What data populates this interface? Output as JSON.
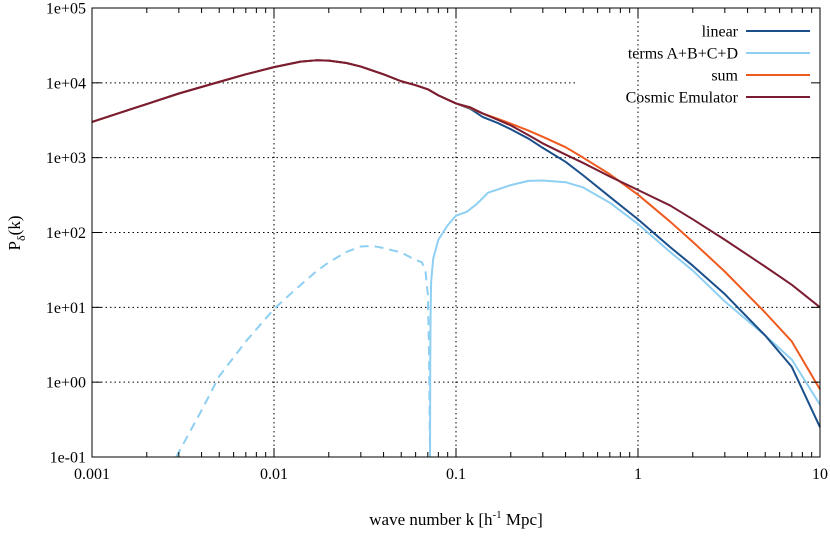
{
  "chart_data": {
    "type": "line",
    "xscale": "log",
    "yscale": "log",
    "xlim": [
      0.001,
      10
    ],
    "ylim": [
      0.1,
      100000
    ],
    "grid": true,
    "legend_position": "top-right",
    "xlabel_parts": {
      "pre": "wave number k [h",
      "sup": "-1",
      "post": " Mpc]"
    },
    "ylabel_parts": {
      "main": "P",
      "sub": "δ",
      "post": "(k)"
    },
    "xticks": [
      {
        "v": 0.001,
        "label": "0.001"
      },
      {
        "v": 0.01,
        "label": "0.01"
      },
      {
        "v": 0.1,
        "label": "0.1"
      },
      {
        "v": 1,
        "label": "1"
      },
      {
        "v": 10,
        "label": "10"
      }
    ],
    "yticks": [
      {
        "v": 0.1,
        "label": "1e-01"
      },
      {
        "v": 1,
        "label": "1e+00"
      },
      {
        "v": 10,
        "label": "1e+01"
      },
      {
        "v": 100,
        "label": "1e+02"
      },
      {
        "v": 1000,
        "label": "1e+03"
      },
      {
        "v": 10000,
        "label": "1e+04"
      },
      {
        "v": 100000,
        "label": "1e+05"
      }
    ],
    "series": [
      {
        "name": "linear",
        "color": "#1a4f8a",
        "points": [
          [
            0.001,
            3000
          ],
          [
            0.0015,
            4150
          ],
          [
            0.002,
            5200
          ],
          [
            0.003,
            7200
          ],
          [
            0.005,
            10300
          ],
          [
            0.007,
            13000
          ],
          [
            0.01,
            16200
          ],
          [
            0.014,
            19200
          ],
          [
            0.017,
            20000
          ],
          [
            0.02,
            19800
          ],
          [
            0.025,
            18400
          ],
          [
            0.03,
            16500
          ],
          [
            0.04,
            13000
          ],
          [
            0.05,
            10500
          ],
          [
            0.06,
            9300
          ],
          [
            0.07,
            8200
          ],
          [
            0.08,
            6800
          ],
          [
            0.1,
            5300
          ],
          [
            0.12,
            4500
          ],
          [
            0.14,
            3500
          ],
          [
            0.17,
            2900
          ],
          [
            0.2,
            2400
          ],
          [
            0.25,
            1800
          ],
          [
            0.3,
            1350
          ],
          [
            0.4,
            880
          ],
          [
            0.5,
            580
          ],
          [
            0.7,
            300
          ],
          [
            1,
            150
          ],
          [
            1.5,
            64
          ],
          [
            2,
            36
          ],
          [
            3,
            15
          ],
          [
            5,
            4.2
          ],
          [
            7,
            1.6
          ],
          [
            10,
            0.25
          ]
        ]
      },
      {
        "name": "terms A+B+C+D",
        "color": "#8ecff2",
        "segments": [
          {
            "style": "dashed",
            "points": [
              [
                0.0029,
                0.1
              ],
              [
                0.004,
                0.42
              ],
              [
                0.005,
                1.2
              ],
              [
                0.007,
                3.5
              ],
              [
                0.01,
                9.5
              ],
              [
                0.013,
                17
              ],
              [
                0.017,
                30
              ],
              [
                0.02,
                40
              ],
              [
                0.025,
                55
              ],
              [
                0.03,
                65
              ],
              [
                0.035,
                66
              ],
              [
                0.04,
                62
              ],
              [
                0.05,
                54
              ],
              [
                0.06,
                43
              ],
              [
                0.065,
                40
              ],
              [
                0.068,
                30
              ],
              [
                0.07,
                15
              ],
              [
                0.071,
                3
              ],
              [
                0.0715,
                0.5
              ],
              [
                0.072,
                0.1
              ]
            ]
          },
          {
            "style": "solid",
            "points": [
              [
                0.072,
                0.1
              ],
              [
                0.0722,
                2
              ],
              [
                0.0725,
                8
              ],
              [
                0.073,
                22
              ],
              [
                0.075,
                45
              ],
              [
                0.08,
                80
              ],
              [
                0.09,
                125
              ],
              [
                0.1,
                168
              ],
              [
                0.115,
                190
              ],
              [
                0.13,
                240
              ],
              [
                0.15,
                340
              ],
              [
                0.2,
                430
              ],
              [
                0.25,
                490
              ],
              [
                0.3,
                495
              ],
              [
                0.4,
                470
              ],
              [
                0.5,
                400
              ],
              [
                0.7,
                250
              ],
              [
                1,
                130
              ],
              [
                1.5,
                55
              ],
              [
                2,
                31
              ],
              [
                3,
                12
              ],
              [
                5,
                4.2
              ],
              [
                7,
                2
              ],
              [
                10,
                0.5
              ]
            ]
          }
        ]
      },
      {
        "name": "sum",
        "color": "#ef5a1f",
        "points": [
          [
            0.001,
            3000
          ],
          [
            0.0015,
            4150
          ],
          [
            0.002,
            5200
          ],
          [
            0.003,
            7200
          ],
          [
            0.005,
            10300
          ],
          [
            0.007,
            13000
          ],
          [
            0.01,
            16200
          ],
          [
            0.014,
            19200
          ],
          [
            0.017,
            20000
          ],
          [
            0.02,
            19800
          ],
          [
            0.025,
            18400
          ],
          [
            0.03,
            16500
          ],
          [
            0.04,
            13000
          ],
          [
            0.05,
            10500
          ],
          [
            0.06,
            9300
          ],
          [
            0.07,
            8200
          ],
          [
            0.08,
            6800
          ],
          [
            0.1,
            5300
          ],
          [
            0.12,
            4600
          ],
          [
            0.14,
            3900
          ],
          [
            0.17,
            3300
          ],
          [
            0.2,
            2850
          ],
          [
            0.25,
            2300
          ],
          [
            0.3,
            1900
          ],
          [
            0.4,
            1380
          ],
          [
            0.5,
            1000
          ],
          [
            0.7,
            600
          ],
          [
            1,
            320
          ],
          [
            1.5,
            140
          ],
          [
            2,
            75
          ],
          [
            3,
            30
          ],
          [
            5,
            8.5
          ],
          [
            7,
            3.5
          ],
          [
            10,
            0.8
          ]
        ]
      },
      {
        "name": "Cosmic Emulator",
        "color": "#7a1d32",
        "points": [
          [
            0.001,
            3000
          ],
          [
            0.0015,
            4150
          ],
          [
            0.002,
            5200
          ],
          [
            0.003,
            7200
          ],
          [
            0.005,
            10300
          ],
          [
            0.007,
            13000
          ],
          [
            0.01,
            16200
          ],
          [
            0.014,
            19200
          ],
          [
            0.017,
            20000
          ],
          [
            0.02,
            19800
          ],
          [
            0.025,
            18400
          ],
          [
            0.03,
            16500
          ],
          [
            0.04,
            13000
          ],
          [
            0.05,
            10500
          ],
          [
            0.06,
            9300
          ],
          [
            0.07,
            8200
          ],
          [
            0.08,
            6800
          ],
          [
            0.1,
            5300
          ],
          [
            0.12,
            4700
          ],
          [
            0.14,
            3900
          ],
          [
            0.17,
            3200
          ],
          [
            0.2,
            2700
          ],
          [
            0.25,
            2000
          ],
          [
            0.3,
            1550
          ],
          [
            0.4,
            1100
          ],
          [
            0.5,
            850
          ],
          [
            0.7,
            560
          ],
          [
            1,
            370
          ],
          [
            1.5,
            230
          ],
          [
            2,
            150
          ],
          [
            3,
            80
          ],
          [
            5,
            35
          ],
          [
            7,
            20
          ],
          [
            10,
            10
          ]
        ]
      }
    ]
  }
}
